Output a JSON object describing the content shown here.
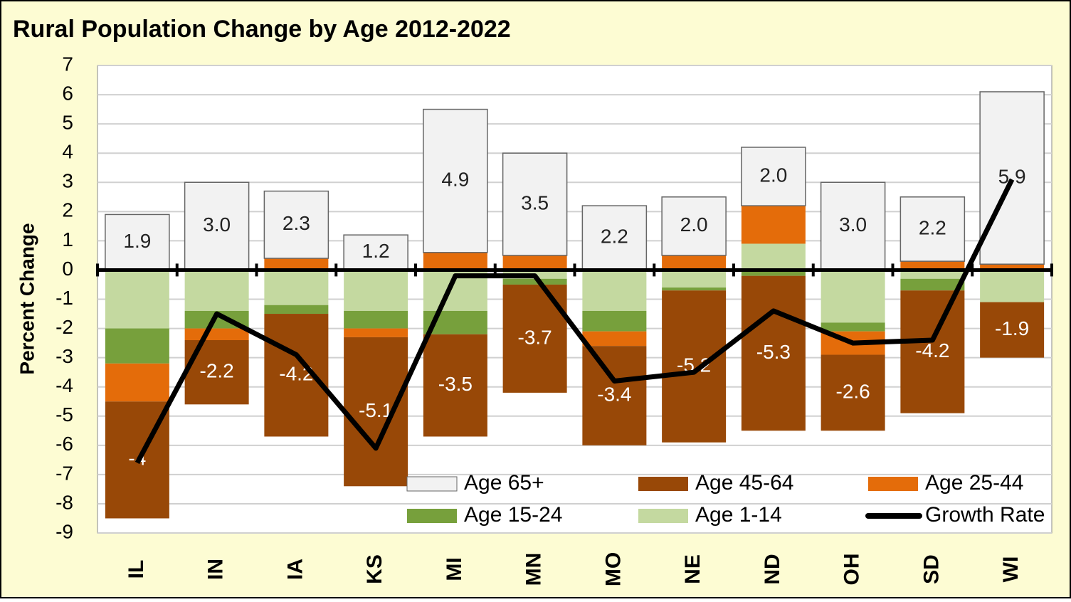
{
  "chart_data": {
    "type": "stacked-bar-line",
    "title": "Rural Population Change by Age 2012-2022",
    "y_label": "Percent Change",
    "categories": [
      "IL",
      "IN",
      "IA",
      "KS",
      "MI",
      "MN",
      "MO",
      "NE",
      "ND",
      "OH",
      "SD",
      "WI"
    ],
    "ylim": [
      -9,
      7
    ],
    "yticks": [
      -9,
      -8,
      -7,
      -6,
      -5,
      -4,
      -3,
      -2,
      -1,
      0,
      1,
      2,
      3,
      4,
      5,
      6,
      7
    ],
    "grid": true,
    "series": [
      {
        "name": "Age 65+",
        "color": "#f2f2f2",
        "values": [
          1.9,
          3.0,
          2.3,
          1.2,
          4.9,
          3.5,
          2.2,
          2.0,
          2.0,
          3.0,
          2.2,
          5.9
        ],
        "value_labels": [
          "1.9",
          "3.0",
          "2.3",
          "1.2",
          "4.9",
          "3.5",
          "2.2",
          "2.0",
          "2.0",
          "3.0",
          "2.2",
          "5.9"
        ]
      },
      {
        "name": "Age 45-64",
        "color": "#984807",
        "values": [
          -4.0,
          -2.2,
          -4.2,
          -5.1,
          -3.5,
          -3.7,
          -3.4,
          -5.2,
          -5.3,
          -2.6,
          -4.2,
          -1.9
        ]
      },
      {
        "name": "Age 25-44",
        "color": "#e46c0a",
        "values": [
          -1.3,
          -0.4,
          0.4,
          -0.3,
          0.6,
          0.5,
          -0.5,
          0.5,
          1.3,
          -0.8,
          0.3,
          0.2
        ]
      },
      {
        "name": "Age 15-24",
        "color": "#77a03c",
        "values": [
          -1.2,
          -0.6,
          -0.3,
          -0.6,
          -0.8,
          -0.2,
          -0.7,
          -0.1,
          -0.2,
          -0.3,
          -0.4,
          0
        ]
      },
      {
        "name": "Age 1-14",
        "color": "#c4d9a0",
        "values": [
          -2.0,
          -1.4,
          -1.2,
          -1.4,
          -1.4,
          -0.3,
          -1.4,
          -0.6,
          0.9,
          -1.8,
          -0.3,
          -1.1
        ]
      },
      {
        "name": "Growth Rate",
        "type": "line",
        "color": "#000000",
        "values": [
          -6.6,
          -1.5,
          -2.9,
          -6.1,
          -0.2,
          -0.2,
          -3.8,
          -3.5,
          -1.4,
          -2.5,
          -2.4,
          3.1
        ]
      }
    ]
  }
}
